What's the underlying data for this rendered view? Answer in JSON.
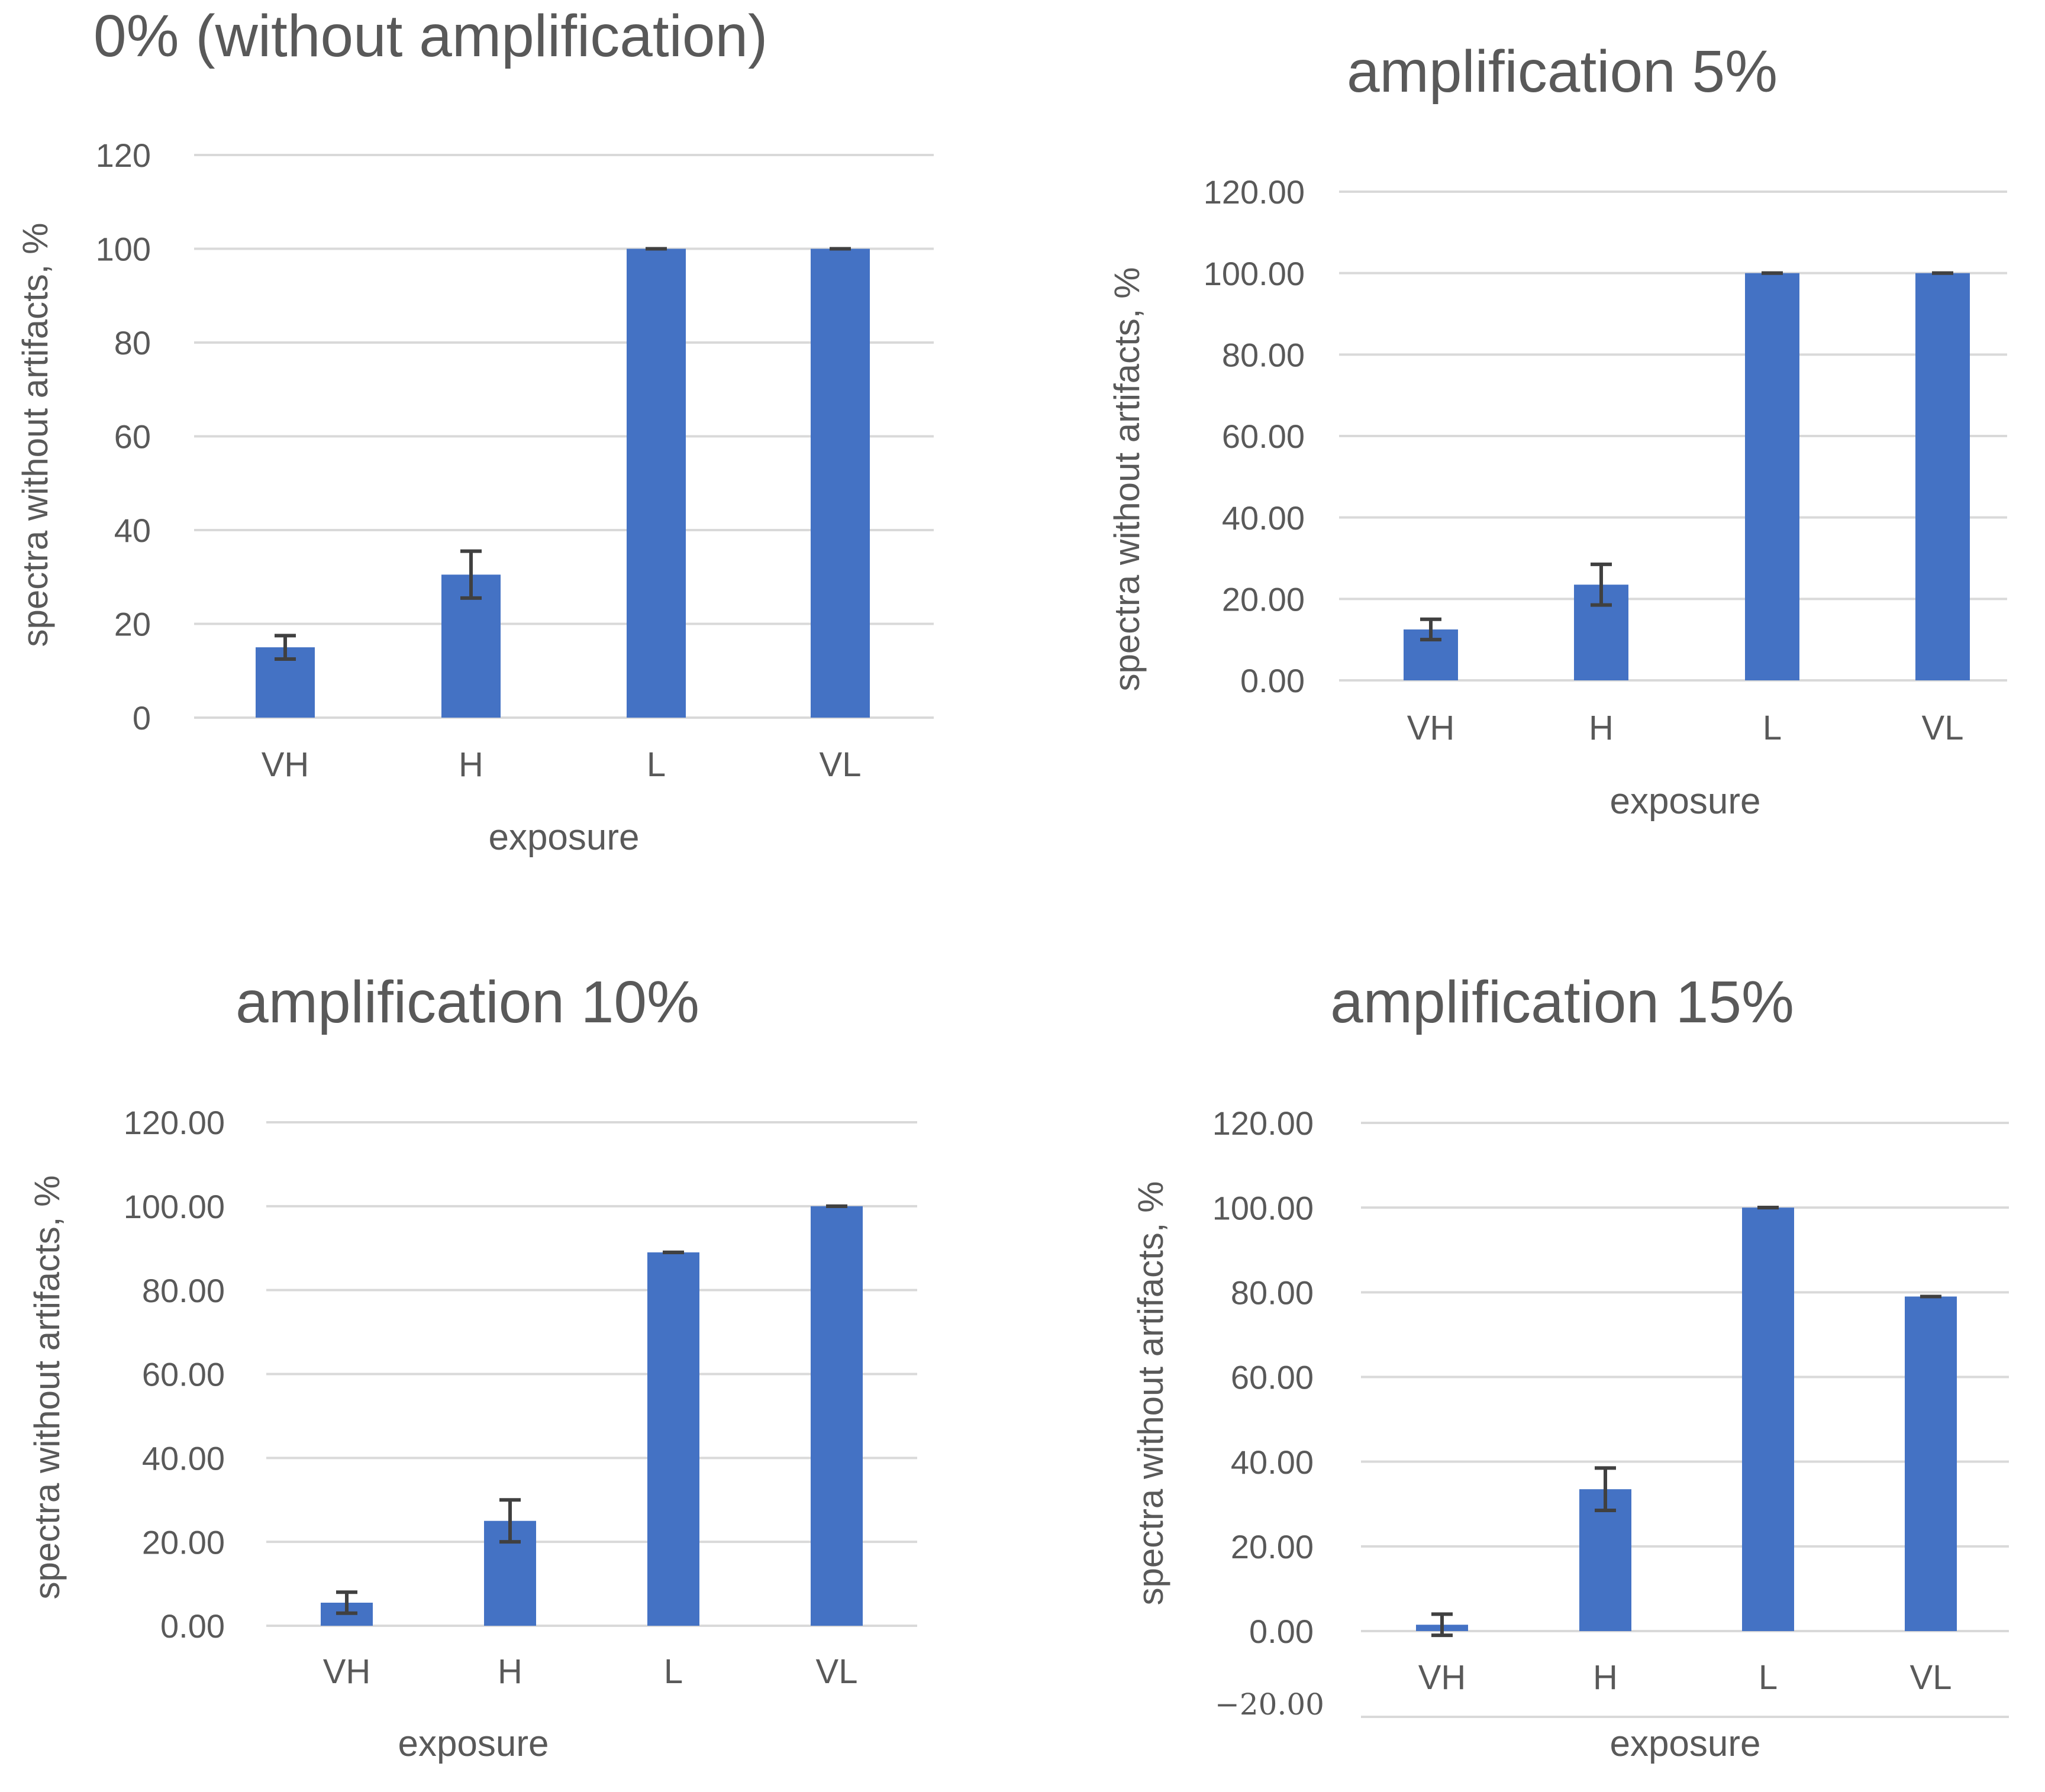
{
  "chart_data": [
    {
      "type": "bar",
      "title": "0% (without amplification)",
      "xlabel": "exposure",
      "ylabel": "spectra without artifacts, %",
      "categories": [
        "VH",
        "H",
        "L",
        "VL"
      ],
      "values": [
        15,
        30.5,
        100,
        100
      ],
      "errors": [
        2.5,
        5,
        0,
        0
      ],
      "ylim": [
        0,
        120
      ],
      "yticks": [
        "0",
        "20",
        "40",
        "60",
        "80",
        "100",
        "120"
      ],
      "grid": true,
      "color": "#4472C4"
    },
    {
      "type": "bar",
      "title": "amplification 5%",
      "xlabel": "exposure",
      "ylabel": "spectra without artifacts, %",
      "categories": [
        "VH",
        "H",
        "L",
        "VL"
      ],
      "values": [
        12.5,
        23.5,
        100,
        100
      ],
      "errors": [
        2.5,
        5,
        0,
        0
      ],
      "ylim": [
        0,
        120
      ],
      "yticks": [
        "0.00",
        "20.00",
        "40.00",
        "60.00",
        "80.00",
        "100.00",
        "120.00"
      ],
      "grid": true,
      "color": "#4472C4"
    },
    {
      "type": "bar",
      "title": "amplification 10%",
      "xlabel": "exposure",
      "ylabel": "spectra without artifacts, %",
      "categories": [
        "VH",
        "H",
        "L",
        "VL"
      ],
      "values": [
        5.5,
        25,
        89,
        100
      ],
      "errors": [
        2.5,
        5,
        0,
        0
      ],
      "ylim": [
        0,
        120
      ],
      "yticks": [
        "0.00",
        "20.00",
        "40.00",
        "60.00",
        "80.00",
        "100.00",
        "120.00"
      ],
      "grid": true,
      "color": "#4472C4"
    },
    {
      "type": "bar",
      "title": "amplification 15%",
      "xlabel": "exposure",
      "ylabel": "spectra without artifacts, %",
      "categories": [
        "VH",
        "H",
        "L",
        "VL"
      ],
      "values": [
        1.5,
        33.5,
        100,
        79
      ],
      "errors": [
        2.5,
        5,
        0,
        0
      ],
      "ylim": [
        -20,
        120
      ],
      "yticks": [
        "0.00",
        "20.00",
        "40.00",
        "60.00",
        "80.00",
        "100.00",
        "120.00"
      ],
      "extra_tick": "−20.00",
      "grid": true,
      "color": "#4472C4"
    }
  ],
  "colors": {
    "bar": "#4472C4",
    "grid": "#D9D9D9",
    "error_bar": "#404040",
    "text": "#595959"
  }
}
